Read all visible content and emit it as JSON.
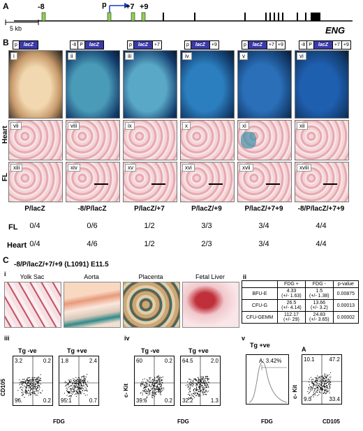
{
  "panels": {
    "A": "A",
    "B": "B",
    "C": "C"
  },
  "map": {
    "gene": "ENG",
    "scale": "5 kb",
    "elements": {
      "m8": "-8",
      "p": "p",
      "p7": "+7",
      "p9": "+9"
    }
  },
  "constructs": [
    {
      "parts": [
        "p",
        "lacZ"
      ]
    },
    {
      "parts": [
        "-8",
        "P",
        "lacZ"
      ]
    },
    {
      "parts": [
        "p",
        "lacZ",
        "+7"
      ]
    },
    {
      "parts": [
        "p",
        "lacZ",
        "+9"
      ]
    },
    {
      "parts": [
        "p",
        "lacZ",
        "+7",
        "+9"
      ]
    },
    {
      "parts": [
        "-8",
        "P",
        "lacZ",
        "+7",
        "+9"
      ]
    }
  ],
  "embryo_labels": [
    "i",
    "ii",
    "iii",
    "iv",
    "v",
    "vi"
  ],
  "heart_labels": [
    "vii",
    "viii",
    "ix",
    "x",
    "xi",
    "xii"
  ],
  "fl_labels": [
    "xiii",
    "xiv",
    "xv",
    "xvi",
    "xvii",
    "xviii"
  ],
  "row_labels": {
    "heart": "Heart",
    "fl": "FL"
  },
  "genotypes": [
    "P/lacZ",
    "-8/P/lacZ",
    "P/lacZ/+7",
    "P/lacZ/+9",
    "P/lacZ/+7+9",
    "-8/P/lacZ/+7+9"
  ],
  "counts": {
    "fl_label": "FL",
    "heart_label": "Heart",
    "fl": [
      "0/4",
      "0/6",
      "1/2",
      "3/3",
      "3/4",
      "4/4"
    ],
    "heart": [
      "0/4",
      "4/6",
      "1/2",
      "2/3",
      "3/4",
      "4/4"
    ]
  },
  "c_title": "-8/P/lacZ/+7/+9 (L1091) E11.5",
  "sub": {
    "i": "i",
    "ii": "ii",
    "iii": "iii",
    "iv": "iv",
    "v": "v"
  },
  "tissues": [
    "Yolk Sac",
    "Aorta",
    "Placenta",
    "Fetal Liver"
  ],
  "table": {
    "headers": [
      "",
      "FDG +",
      "FDG -",
      "p-value"
    ],
    "rows": [
      [
        "BFU-E",
        "4.33\n(+/- 1.63)",
        "1.5\n(+/- 1.38)",
        "0.00875"
      ],
      [
        "CFU-G",
        "26.5\n(+/- 4.14)",
        "13.66\n(+/- 3.2)",
        "0.00013"
      ],
      [
        "CFU-GEMM",
        "112.17\n(+/- 29)",
        "24.83\n(+/- 3.65)",
        "0.00002"
      ]
    ]
  },
  "facs_iii": {
    "ylabel": "CD105",
    "xlabel": "FDG",
    "titles": [
      "Tg -ve",
      "Tg +ve"
    ],
    "q": [
      [
        "3.2",
        "0.2",
        "96.",
        "0.2"
      ],
      [
        "1.8",
        "2.4",
        "95.1",
        "0.7"
      ]
    ]
  },
  "facs_iv": {
    "ylabel": "c- Kit",
    "xlabel": "FDG",
    "titles": [
      "Tg -ve",
      "Tg +ve"
    ],
    "q": [
      [
        "60",
        "0.2",
        "39.6",
        "0.2"
      ],
      [
        "64.5",
        "2.0",
        "32.2",
        "1.3"
      ]
    ]
  },
  "facs_v": {
    "title": "Tg +ve",
    "gate": "A: 3.42%",
    "xlabel": "FDG",
    "ylabel": "c- Kit",
    "xlabel2": "CD105",
    "gate_name": "A",
    "q": [
      "10.1",
      "47.2",
      "9.3",
      "33.4"
    ]
  }
}
